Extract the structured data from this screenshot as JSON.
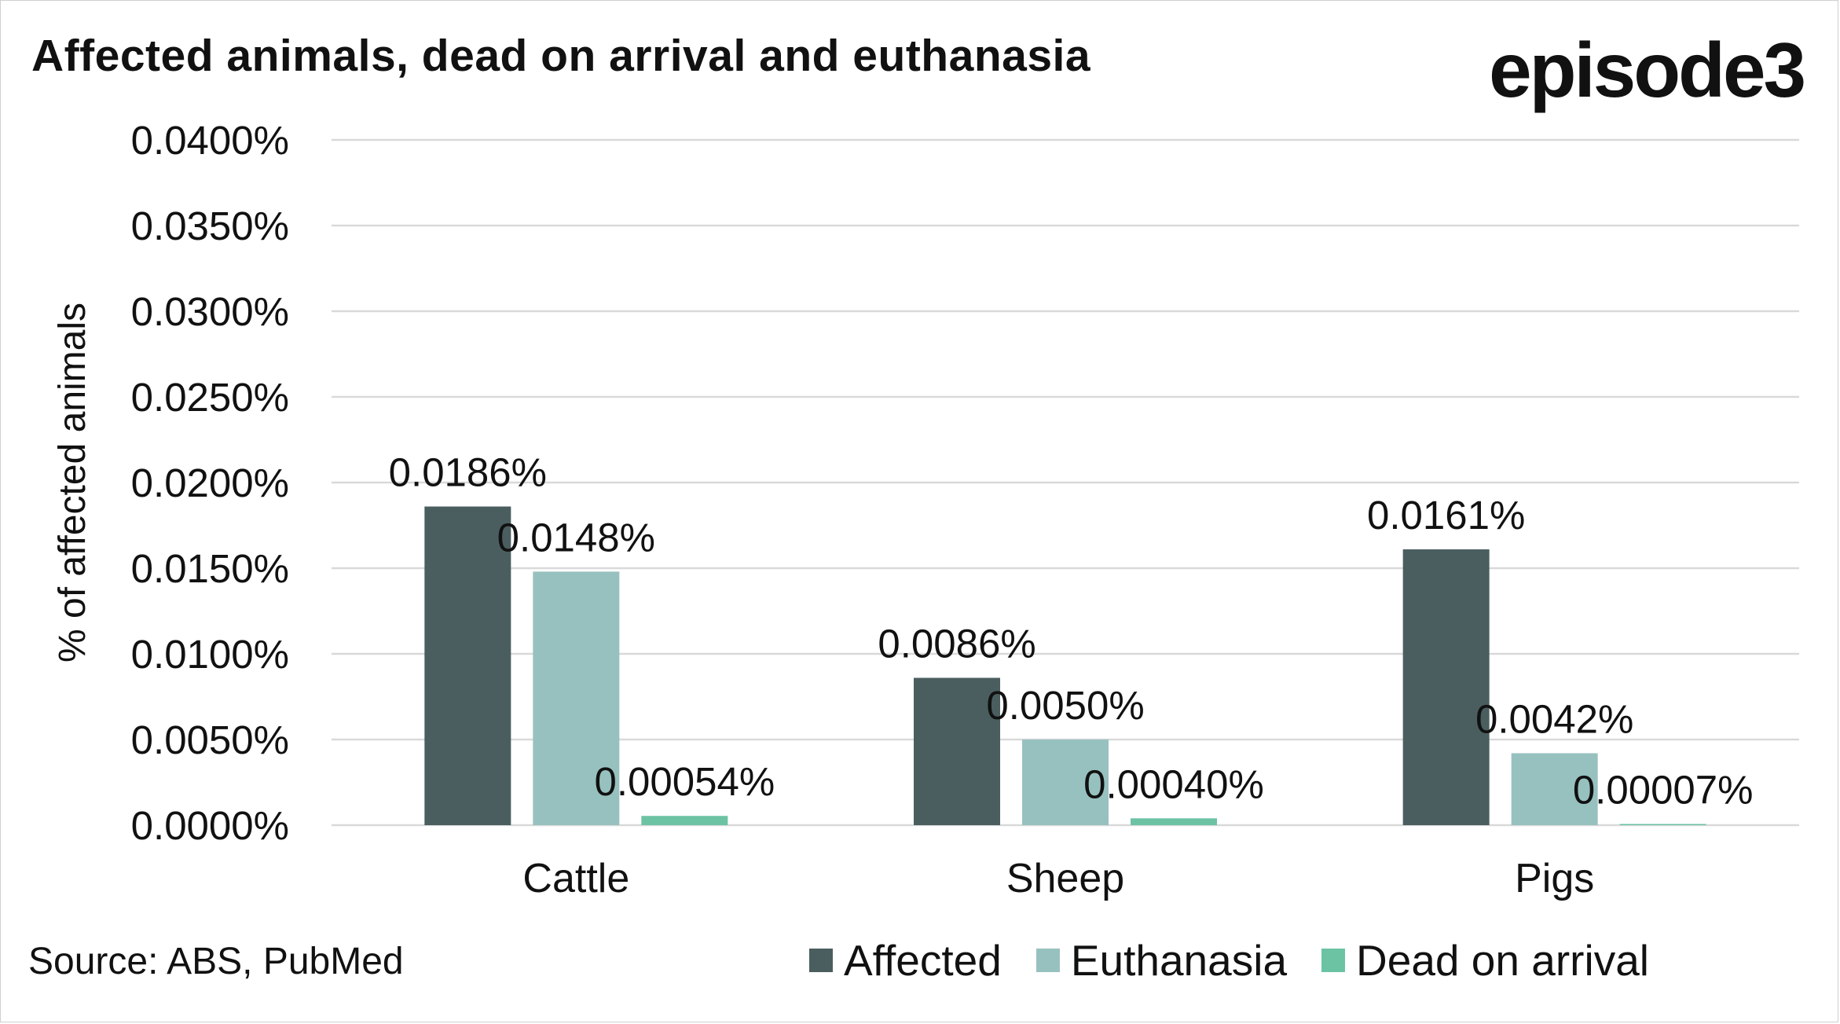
{
  "header": {
    "title": "Affected animals, dead on arrival and euthanasia",
    "brand": "episode3"
  },
  "footer": {
    "source": "Source: ABS, PubMed"
  },
  "colors": {
    "affected": "#4B5E5F",
    "euthanasia": "#97C1BF",
    "dead_on_arrival": "#6CC3A4",
    "grid": "#d9d9d9"
  },
  "chart_data": {
    "type": "bar",
    "title": "Affected animals, dead on arrival and euthanasia",
    "ylabel": "% of affected animals",
    "xlabel": "",
    "ylim": [
      0,
      0.04
    ],
    "yticks": [
      "0.0000%",
      "0.0050%",
      "0.0100%",
      "0.0150%",
      "0.0200%",
      "0.0250%",
      "0.0300%",
      "0.0350%",
      "0.0400%"
    ],
    "categories": [
      "Cattle",
      "Sheep",
      "Pigs"
    ],
    "grid": true,
    "legend_position": "bottom",
    "series": [
      {
        "name": "Affected",
        "values": [
          0.0186,
          0.0086,
          0.0161
        ],
        "labels": [
          "0.0186%",
          "0.0086%",
          "0.0161%"
        ]
      },
      {
        "name": "Euthanasia",
        "values": [
          0.0148,
          0.005,
          0.0042
        ],
        "labels": [
          "0.0148%",
          "0.0050%",
          "0.0042%"
        ]
      },
      {
        "name": "Dead on arrival",
        "values": [
          0.00054,
          0.0004,
          7e-05
        ],
        "labels": [
          "0.00054%",
          "0.00040%",
          "0.00007%"
        ]
      }
    ]
  }
}
